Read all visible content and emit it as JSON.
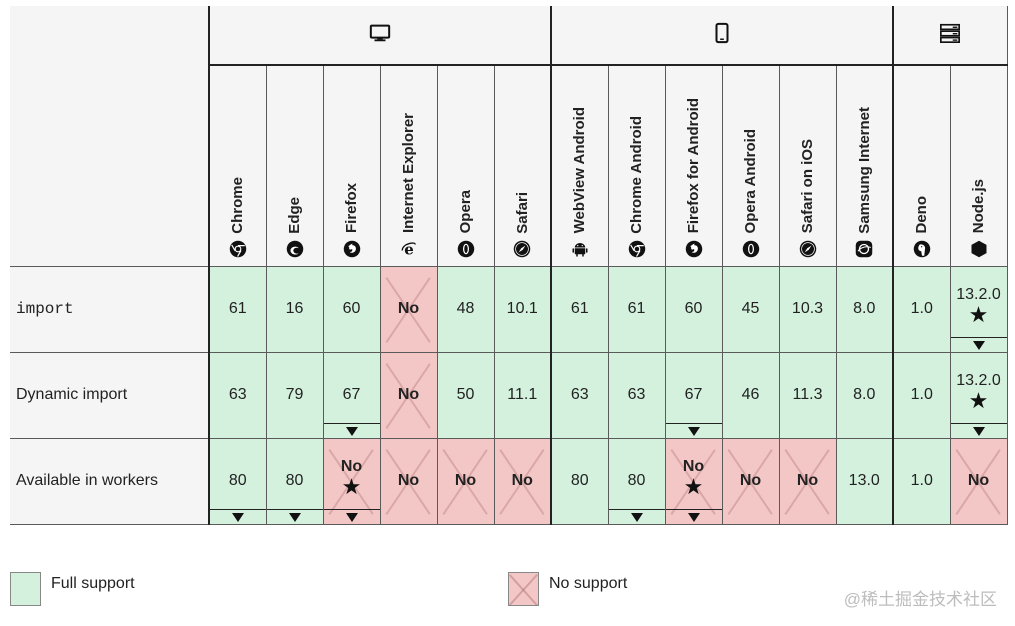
{
  "groups": [
    {
      "icon": "desktop-icon",
      "span": 6
    },
    {
      "icon": "mobile-icon",
      "span": 6
    },
    {
      "icon": "server-icon",
      "span": 2
    }
  ],
  "browsers": [
    {
      "label": "Chrome",
      "icon": "chrome-icon"
    },
    {
      "label": "Edge",
      "icon": "edge-icon"
    },
    {
      "label": "Firefox",
      "icon": "firefox-icon"
    },
    {
      "label": "Internet Explorer",
      "icon": "ie-icon"
    },
    {
      "label": "Opera",
      "icon": "opera-icon"
    },
    {
      "label": "Safari",
      "icon": "safari-icon"
    },
    {
      "label": "WebView Android",
      "icon": "android-icon"
    },
    {
      "label": "Chrome Android",
      "icon": "chrome-icon"
    },
    {
      "label": "Firefox for Android",
      "icon": "firefox-icon"
    },
    {
      "label": "Opera Android",
      "icon": "opera-icon"
    },
    {
      "label": "Safari on iOS",
      "icon": "safari-icon"
    },
    {
      "label": "Samsung Internet",
      "icon": "samsung-icon"
    },
    {
      "label": "Deno",
      "icon": "deno-icon"
    },
    {
      "label": "Node.js",
      "icon": "nodejs-icon"
    }
  ],
  "features": [
    {
      "name": "import",
      "code": true,
      "cells": [
        {
          "v": "61",
          "s": "yes"
        },
        {
          "v": "16",
          "s": "yes"
        },
        {
          "v": "60",
          "s": "yes"
        },
        {
          "v": "No",
          "s": "no"
        },
        {
          "v": "48",
          "s": "yes"
        },
        {
          "v": "10.1",
          "s": "yes"
        },
        {
          "v": "61",
          "s": "yes"
        },
        {
          "v": "61",
          "s": "yes"
        },
        {
          "v": "60",
          "s": "yes"
        },
        {
          "v": "45",
          "s": "yes"
        },
        {
          "v": "10.3",
          "s": "yes"
        },
        {
          "v": "8.0",
          "s": "yes"
        },
        {
          "v": "1.0",
          "s": "yes"
        },
        {
          "v": "13.2.0",
          "s": "yes",
          "star": true,
          "note": true
        }
      ]
    },
    {
      "name": "Dynamic import",
      "code": false,
      "cells": [
        {
          "v": "63",
          "s": "yes"
        },
        {
          "v": "79",
          "s": "yes"
        },
        {
          "v": "67",
          "s": "yes",
          "note": true
        },
        {
          "v": "No",
          "s": "no"
        },
        {
          "v": "50",
          "s": "yes"
        },
        {
          "v": "11.1",
          "s": "yes"
        },
        {
          "v": "63",
          "s": "yes"
        },
        {
          "v": "63",
          "s": "yes"
        },
        {
          "v": "67",
          "s": "yes",
          "note": true
        },
        {
          "v": "46",
          "s": "yes"
        },
        {
          "v": "11.3",
          "s": "yes"
        },
        {
          "v": "8.0",
          "s": "yes"
        },
        {
          "v": "1.0",
          "s": "yes"
        },
        {
          "v": "13.2.0",
          "s": "yes",
          "star": true,
          "note": true
        }
      ]
    },
    {
      "name": "Available in workers",
      "code": false,
      "cells": [
        {
          "v": "80",
          "s": "yes",
          "note": true
        },
        {
          "v": "80",
          "s": "yes",
          "note": true
        },
        {
          "v": "No",
          "s": "no",
          "star": true,
          "note": true
        },
        {
          "v": "No",
          "s": "no"
        },
        {
          "v": "No",
          "s": "no"
        },
        {
          "v": "No",
          "s": "no"
        },
        {
          "v": "80",
          "s": "yes"
        },
        {
          "v": "80",
          "s": "yes",
          "note": true
        },
        {
          "v": "No",
          "s": "no",
          "star": true,
          "note": true
        },
        {
          "v": "No",
          "s": "no"
        },
        {
          "v": "No",
          "s": "no"
        },
        {
          "v": "13.0",
          "s": "yes"
        },
        {
          "v": "1.0",
          "s": "yes"
        },
        {
          "v": "No",
          "s": "no"
        }
      ]
    }
  ],
  "legend": {
    "full_support": "Full support",
    "no_support": "No support"
  },
  "watermark": "@稀土掘金技术社区",
  "colors": {
    "yes": "#d4f1de",
    "no": "#f4c7c7",
    "header": "#f5f5f5"
  }
}
